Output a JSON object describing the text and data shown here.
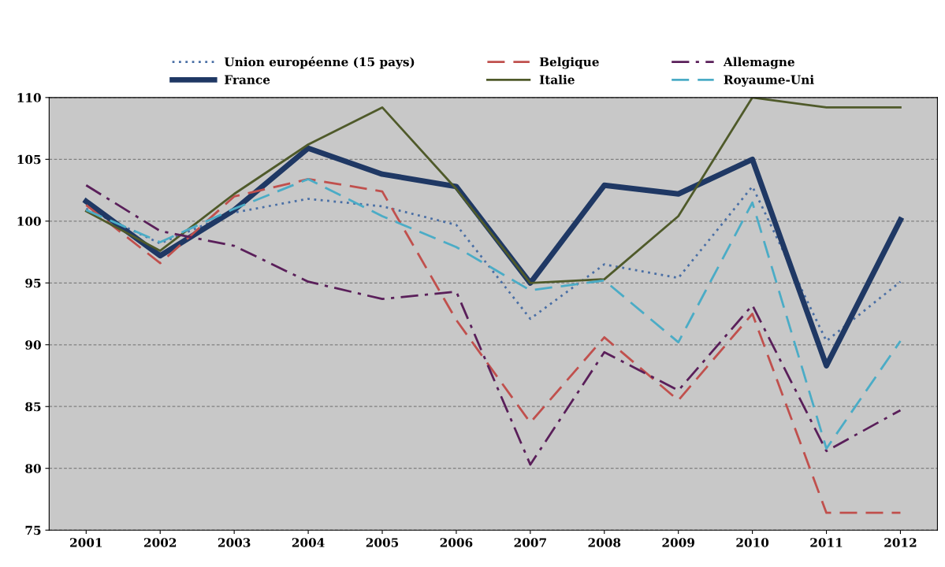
{
  "chart_data": {
    "type": "line",
    "categories": [
      "2001",
      "2002",
      "2003",
      "2004",
      "2005",
      "2006",
      "2007",
      "2008",
      "2009",
      "2010",
      "2011",
      "2012"
    ],
    "series": [
      {
        "name": "Union européenne (15 pays)",
        "color": "#4a6fa5",
        "line_style": "dotted",
        "values": [
          101.0,
          98.2,
          100.7,
          101.8,
          101.2,
          99.7,
          92.1,
          96.5,
          95.4,
          102.8,
          90.3,
          95.1
        ]
      },
      {
        "name": "France",
        "color": "#1f3864",
        "line_style": "solid",
        "values": [
          101.6,
          97.2,
          100.9,
          105.9,
          103.8,
          102.8,
          95.0,
          102.9,
          102.2,
          105.0,
          88.3,
          100.1
        ]
      },
      {
        "name": "Belgique",
        "color": "#c0504d",
        "line_style": "dashed",
        "values": [
          101.3,
          96.6,
          102.0,
          103.4,
          102.4,
          92.0,
          83.7,
          90.6,
          85.5,
          92.5,
          76.4,
          76.4
        ]
      },
      {
        "name": "Italie",
        "color": "#4f5a2a",
        "line_style": "solid",
        "values": [
          100.8,
          97.6,
          102.2,
          106.2,
          109.2,
          102.6,
          95.0,
          95.3,
          100.4,
          110.0,
          109.2,
          109.2
        ]
      },
      {
        "name": "Allemagne",
        "color": "#5a1f5a",
        "line_style": "dashdot",
        "values": [
          102.9,
          99.2,
          98.0,
          95.1,
          93.7,
          94.3,
          80.3,
          89.4,
          86.3,
          93.2,
          81.4,
          84.7
        ]
      },
      {
        "name": "Royaume-Uni",
        "color": "#4bacc6",
        "line_style": "dashed",
        "values": [
          100.9,
          98.3,
          101.0,
          103.4,
          100.4,
          97.9,
          94.4,
          95.2,
          90.2,
          101.5,
          81.6,
          90.3
        ]
      }
    ],
    "ylim": [
      75,
      110
    ],
    "yticks": [
      75,
      80,
      85,
      90,
      95,
      100,
      105,
      110
    ],
    "grid": "y",
    "legend": "top",
    "marker": "none"
  }
}
